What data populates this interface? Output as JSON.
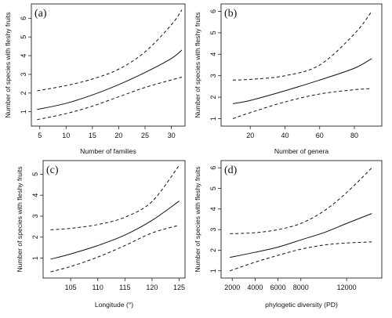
{
  "chart_data": [
    {
      "type": "line",
      "panel_label": "(a)",
      "xlabel": "Number of families",
      "ylabel": "Number of species with fleshy fruits",
      "xlim": [
        4,
        32
      ],
      "ylim": [
        0.4,
        6.6
      ],
      "xticks": [
        5,
        10,
        15,
        20,
        25,
        30
      ],
      "yticks": [
        1,
        2,
        3,
        4,
        5,
        6
      ],
      "series": [
        {
          "style": "dashed",
          "x": [
            4.5,
            10,
            15,
            20,
            25,
            30,
            32
          ],
          "y": [
            2.12,
            2.4,
            2.75,
            3.28,
            4.2,
            5.65,
            6.45
          ]
        },
        {
          "style": "solid",
          "x": [
            4.5,
            10,
            15,
            20,
            25,
            30,
            32
          ],
          "y": [
            1.12,
            1.45,
            1.9,
            2.45,
            3.1,
            3.85,
            4.3
          ]
        },
        {
          "style": "dashed",
          "x": [
            4.5,
            10,
            15,
            20,
            25,
            30,
            32
          ],
          "y": [
            0.58,
            0.9,
            1.3,
            1.8,
            2.3,
            2.7,
            2.85
          ]
        }
      ]
    },
    {
      "type": "line",
      "panel_label": "(b)",
      "xlabel": "Number of genera",
      "ylabel": "Number of species with fleshy fruits",
      "xlim": [
        5,
        94
      ],
      "ylim": [
        0.8,
        6.2
      ],
      "xticks": [
        20,
        40,
        60,
        80
      ],
      "yticks": [
        1,
        2,
        3,
        4,
        5,
        6
      ],
      "series": [
        {
          "style": "dashed",
          "x": [
            10,
            20,
            40,
            60,
            80,
            90
          ],
          "y": [
            2.8,
            2.83,
            3.0,
            3.5,
            4.95,
            6.0
          ]
        },
        {
          "style": "solid",
          "x": [
            10,
            20,
            40,
            60,
            80,
            90
          ],
          "y": [
            1.7,
            1.85,
            2.3,
            2.8,
            3.35,
            3.8
          ]
        },
        {
          "style": "dashed",
          "x": [
            10,
            20,
            40,
            60,
            80,
            90
          ],
          "y": [
            1.0,
            1.28,
            1.78,
            2.15,
            2.35,
            2.4
          ]
        }
      ]
    },
    {
      "type": "line",
      "panel_label": "(c)",
      "xlabel": "Longitude (°)",
      "ylabel": "Number of species with fleshy fruits",
      "xlim": [
        100.5,
        125.5
      ],
      "ylim": [
        0.2,
        5.5
      ],
      "xticks": [
        105,
        110,
        115,
        120,
        125
      ],
      "yticks": [
        1,
        2,
        3,
        4,
        5
      ],
      "series": [
        {
          "style": "dashed",
          "x": [
            101.3,
            105,
            110,
            115,
            120,
            125
          ],
          "y": [
            2.35,
            2.42,
            2.6,
            2.95,
            3.7,
            5.42
          ]
        },
        {
          "style": "solid",
          "x": [
            101.3,
            105,
            110,
            115,
            120,
            125
          ],
          "y": [
            0.95,
            1.2,
            1.6,
            2.1,
            2.8,
            3.72
          ]
        },
        {
          "style": "dashed",
          "x": [
            101.3,
            105,
            110,
            115,
            120,
            125
          ],
          "y": [
            0.35,
            0.6,
            1.05,
            1.6,
            2.2,
            2.57
          ]
        }
      ]
    },
    {
      "type": "line",
      "panel_label": "(d)",
      "xlabel": "phylogetic diversity (PD)",
      "ylabel": "Number of species with fleshy fruits",
      "xlim": [
        1300,
        14800
      ],
      "ylim": [
        0.8,
        6.2
      ],
      "xticks": [
        2000,
        4000,
        6000,
        8000,
        12000
      ],
      "yticks": [
        1,
        2,
        3,
        4,
        5,
        6
      ],
      "series": [
        {
          "style": "dashed",
          "x": [
            1800,
            4000,
            6000,
            8000,
            10000,
            12000,
            14200
          ],
          "y": [
            2.8,
            2.85,
            3.0,
            3.3,
            3.9,
            4.8,
            6.0
          ]
        },
        {
          "style": "solid",
          "x": [
            1800,
            4000,
            6000,
            8000,
            10000,
            12000,
            14200
          ],
          "y": [
            1.65,
            1.9,
            2.15,
            2.5,
            2.85,
            3.3,
            3.78
          ]
        },
        {
          "style": "dashed",
          "x": [
            1800,
            4000,
            6000,
            8000,
            10000,
            12000,
            14200
          ],
          "y": [
            1.0,
            1.42,
            1.75,
            2.05,
            2.25,
            2.35,
            2.4
          ]
        }
      ]
    }
  ]
}
